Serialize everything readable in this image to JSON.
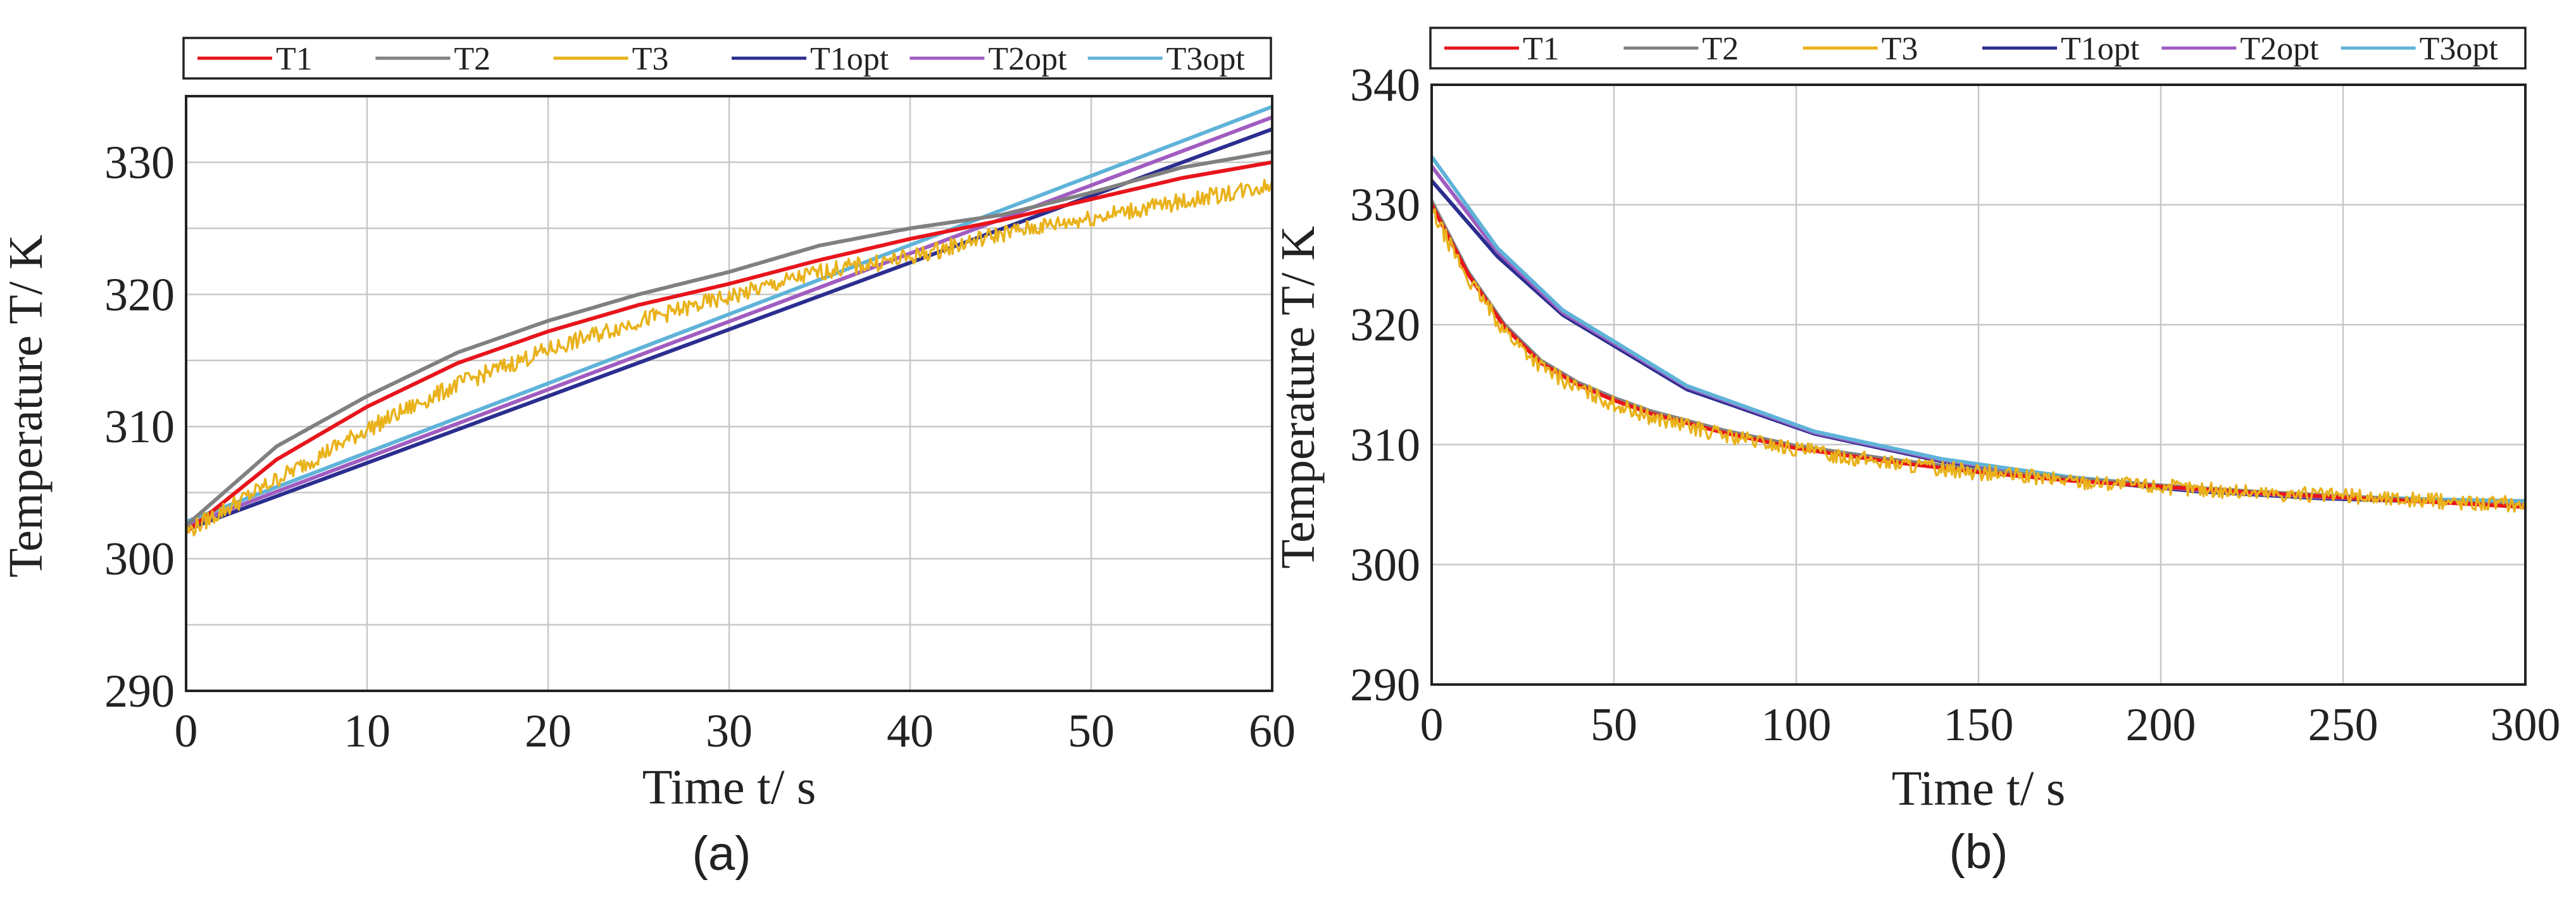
{
  "chart_data": [
    {
      "panel_label": "(a)",
      "type": "line",
      "title": "",
      "xlabel": "Time t/ s",
      "ylabel": "Temperature T/ K",
      "xlim": [
        0,
        60
      ],
      "ylim": [
        290,
        335
      ],
      "xticks": [
        "0",
        "10",
        "20",
        "30",
        "40",
        "50",
        "60"
      ],
      "yticks": [
        "290",
        "300",
        "310",
        "320",
        "330"
      ],
      "grid": true,
      "legend_position": "top",
      "series": [
        {
          "name": "T1",
          "color": "#e8141b",
          "noisy": false,
          "x": [
            0,
            5,
            10,
            15,
            20,
            25,
            30,
            35,
            40,
            45,
            50,
            55,
            60
          ],
          "y": [
            302,
            307.5,
            311.5,
            314.8,
            317.2,
            319.2,
            320.8,
            322.6,
            324.2,
            325.6,
            327.2,
            328.8,
            330
          ]
        },
        {
          "name": "T2",
          "color": "#808080",
          "noisy": false,
          "x": [
            0,
            5,
            10,
            15,
            20,
            25,
            30,
            35,
            40,
            45,
            50,
            55,
            60
          ],
          "y": [
            302.5,
            308.5,
            312.3,
            315.6,
            318,
            320,
            321.7,
            323.7,
            325,
            326,
            327.7,
            329.6,
            330.8
          ]
        },
        {
          "name": "T3",
          "color": "#e9b21b",
          "noisy": true,
          "x": [
            0,
            5,
            10,
            15,
            20,
            25,
            30,
            35,
            40,
            45,
            50,
            55,
            60
          ],
          "y": [
            302,
            306,
            309.8,
            313.2,
            315.8,
            318,
            319.8,
            321.7,
            322.8,
            324.6,
            325.8,
            327,
            328.3
          ]
        },
        {
          "name": "T1opt",
          "color": "#2b2e8f",
          "noisy": false,
          "x": [
            0,
            60
          ],
          "y": [
            302.2,
            332.5
          ]
        },
        {
          "name": "T2opt",
          "color": "#a05cc0",
          "noisy": false,
          "x": [
            0,
            60
          ],
          "y": [
            302.5,
            333.4
          ]
        },
        {
          "name": "T3opt",
          "color": "#5fb3d9",
          "noisy": false,
          "x": [
            0,
            60
          ],
          "y": [
            302.8,
            334.2
          ]
        }
      ]
    },
    {
      "panel_label": "(b)",
      "type": "line",
      "title": "",
      "xlabel": "Time t/ s",
      "ylabel": "Temperature T/ K",
      "xlim": [
        0,
        300
      ],
      "ylim": [
        290,
        340
      ],
      "xticks": [
        "0",
        "50",
        "100",
        "150",
        "200",
        "250",
        "300"
      ],
      "yticks": [
        "290",
        "300",
        "310",
        "320",
        "330",
        "340"
      ],
      "grid": true,
      "legend_position": "top",
      "series": [
        {
          "name": "T1",
          "color": "#e8141b",
          "noisy": false,
          "x": [
            0,
            10,
            20,
            30,
            40,
            50,
            60,
            80,
            100,
            125,
            150,
            175,
            200,
            225,
            250,
            275,
            300
          ],
          "y": [
            330,
            324.2,
            319.8,
            316.8,
            315,
            313.7,
            312.6,
            311,
            309.7,
            308.6,
            307.7,
            307,
            306.5,
            306,
            305.6,
            305.2,
            304.8
          ]
        },
        {
          "name": "T2",
          "color": "#808080",
          "noisy": false,
          "x": [
            0,
            10,
            20,
            30,
            40,
            50,
            60,
            80,
            100,
            125,
            150,
            175,
            200,
            225,
            250,
            275,
            300
          ],
          "y": [
            330.3,
            324.4,
            320,
            317,
            315.2,
            313.9,
            312.8,
            311.2,
            309.9,
            308.8,
            307.9,
            307.2,
            306.6,
            306.1,
            305.7,
            305.3,
            304.9
          ]
        },
        {
          "name": "T3",
          "color": "#e9b21b",
          "noisy": true,
          "x": [
            0,
            10,
            20,
            30,
            40,
            50,
            60,
            80,
            100,
            125,
            150,
            175,
            200,
            225,
            250,
            275,
            300
          ],
          "y": [
            329.5,
            323.8,
            319.5,
            316.5,
            314.7,
            313.4,
            312.3,
            310.8,
            309.6,
            308.5,
            307.7,
            307,
            306.5,
            306,
            305.7,
            305.3,
            305
          ]
        },
        {
          "name": "T1opt",
          "color": "#2b2e8f",
          "noisy": false,
          "x": [
            0,
            18,
            36,
            70,
            105,
            140,
            175,
            210,
            245,
            280,
            300
          ],
          "y": [
            332,
            325.7,
            320.8,
            314.6,
            310.9,
            308.6,
            307.1,
            306.1,
            305.5,
            305.2,
            305.1
          ]
        },
        {
          "name": "T2opt",
          "color": "#a05cc0",
          "noisy": false,
          "x": [
            0,
            18,
            36,
            70,
            105,
            140,
            175,
            210,
            245,
            280,
            300
          ],
          "y": [
            333.2,
            326.1,
            321,
            314.8,
            311,
            308.7,
            307.2,
            306.2,
            305.6,
            305.3,
            305.2
          ]
        },
        {
          "name": "T3opt",
          "color": "#5fb3d9",
          "noisy": false,
          "x": [
            0,
            18,
            36,
            70,
            105,
            140,
            175,
            210,
            245,
            280,
            300
          ],
          "y": [
            334,
            326.4,
            321.2,
            314.9,
            311.1,
            308.8,
            307.3,
            306.3,
            305.7,
            305.4,
            305.3
          ]
        }
      ]
    }
  ]
}
